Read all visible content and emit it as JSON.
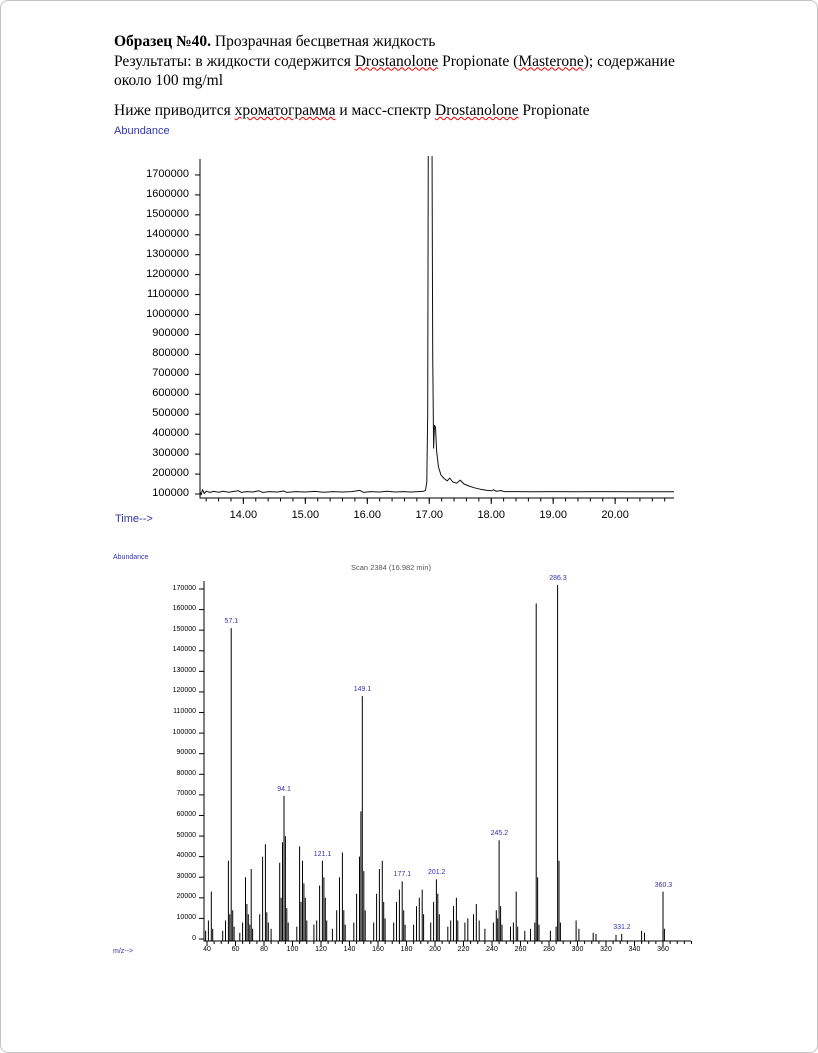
{
  "report": {
    "sample_title": "Образец №40.",
    "sample_desc": " Прозрачная бесцветная жидкость",
    "results_1": "Результаты: в жидкости содержится ",
    "drug_name_1": "Drostanolone",
    "results_2": " Propionate (",
    "trade_name": "Masterone",
    "results_3": "); содержание",
    "results_4": "около 100 mg/ml",
    "intro_1": "Ниже приводится ",
    "intro_word_chromatogram": "хроматограмма",
    "intro_2": " и масс-спектр ",
    "drug_name_2": "Drostanolone",
    "intro_3": " Propionate"
  },
  "colors": {
    "axis_label_blue": "#3333ad",
    "trace_black": "#111111",
    "title_gray": "#555555",
    "spellcheck_red": "#ee0000"
  },
  "chart_data": [
    {
      "type": "line",
      "title": "",
      "ylabel": "Abundance",
      "xlabel": "Time-->",
      "grid": false,
      "x_range": [
        13.3,
        20.95
      ],
      "y_range": [
        80000,
        1780000
      ],
      "x_major_ticks": [
        14,
        15,
        16,
        17,
        18,
        19,
        20
      ],
      "x_tick_decimals": 2,
      "x_minor_step": 0.2,
      "y_ticks": [
        100000,
        200000,
        300000,
        400000,
        500000,
        600000,
        700000,
        800000,
        900000,
        1000000,
        1100000,
        1200000,
        1300000,
        1400000,
        1500000,
        1600000,
        1700000
      ],
      "points": [
        [
          13.3,
          112000
        ],
        [
          13.32,
          96000
        ],
        [
          13.34,
          122000
        ],
        [
          13.37,
          102000
        ],
        [
          13.4,
          114000
        ],
        [
          13.46,
          108000
        ],
        [
          13.52,
          113000
        ],
        [
          13.6,
          109000
        ],
        [
          13.68,
          114000
        ],
        [
          13.76,
          109000
        ],
        [
          13.85,
          113000
        ],
        [
          13.92,
          116000
        ],
        [
          13.97,
          108000
        ],
        [
          14.05,
          112000
        ],
        [
          14.15,
          110000
        ],
        [
          14.25,
          116000
        ],
        [
          14.31,
          108000
        ],
        [
          14.42,
          112000
        ],
        [
          14.55,
          110000
        ],
        [
          14.65,
          115000
        ],
        [
          14.7,
          108000
        ],
        [
          14.85,
          112000
        ],
        [
          15.0,
          110000
        ],
        [
          15.15,
          113000
        ],
        [
          15.3,
          109000
        ],
        [
          15.45,
          112000
        ],
        [
          15.6,
          110000
        ],
        [
          15.75,
          112000
        ],
        [
          15.88,
          118000
        ],
        [
          15.94,
          108000
        ],
        [
          16.05,
          112000
        ],
        [
          16.2,
          110000
        ],
        [
          16.32,
          114000
        ],
        [
          16.45,
          110000
        ],
        [
          16.58,
          112000
        ],
        [
          16.7,
          110000
        ],
        [
          16.82,
          112000
        ],
        [
          16.9,
          113000
        ],
        [
          16.94,
          118000
        ],
        [
          16.96,
          160000
        ],
        [
          16.975,
          500000
        ],
        [
          16.985,
          1900000
        ],
        [
          17.045,
          1900000
        ],
        [
          17.055,
          800000
        ],
        [
          17.07,
          330000
        ],
        [
          17.085,
          445000
        ],
        [
          17.1,
          435000
        ],
        [
          17.12,
          310000
        ],
        [
          17.15,
          235000
        ],
        [
          17.19,
          195000
        ],
        [
          17.24,
          178000
        ],
        [
          17.29,
          166000
        ],
        [
          17.33,
          180000
        ],
        [
          17.38,
          160000
        ],
        [
          17.44,
          154000
        ],
        [
          17.5,
          170000
        ],
        [
          17.56,
          150000
        ],
        [
          17.64,
          140000
        ],
        [
          17.73,
          131000
        ],
        [
          17.82,
          124000
        ],
        [
          17.92,
          119000
        ],
        [
          18.0,
          116000
        ],
        [
          18.04,
          121000
        ],
        [
          18.08,
          114000
        ],
        [
          18.15,
          117000
        ],
        [
          18.22,
          112000
        ],
        [
          18.4,
          112000
        ],
        [
          18.7,
          111000
        ],
        [
          19.0,
          112000
        ],
        [
          19.4,
          111000
        ],
        [
          19.8,
          112000
        ],
        [
          20.3,
          111000
        ],
        [
          20.95,
          111000
        ]
      ]
    },
    {
      "type": "bar",
      "title": "Scan 2384 (16.982 min)",
      "ylabel": "Abundance",
      "xlabel": "m/z-->",
      "grid": false,
      "x_range": [
        38,
        380
      ],
      "y_range": [
        0,
        174000
      ],
      "x_major_ticks": [
        40,
        60,
        80,
        100,
        120,
        140,
        160,
        180,
        200,
        220,
        240,
        260,
        280,
        300,
        320,
        340,
        360
      ],
      "x_tick_decimals": 0,
      "x_minor_step": 5,
      "y_ticks": [
        0,
        10000,
        20000,
        30000,
        40000,
        50000,
        60000,
        70000,
        80000,
        90000,
        100000,
        110000,
        120000,
        130000,
        140000,
        150000,
        160000,
        170000
      ],
      "peaks": [
        [
          39,
          4000
        ],
        [
          41,
          9000
        ],
        [
          43,
          23000
        ],
        [
          44,
          5000
        ],
        [
          51,
          4000
        ],
        [
          53,
          9000
        ],
        [
          55,
          38000
        ],
        [
          56,
          12000
        ],
        [
          57,
          151000
        ],
        [
          58,
          14000
        ],
        [
          59,
          6000
        ],
        [
          63,
          3000
        ],
        [
          65,
          8000
        ],
        [
          67,
          30000
        ],
        [
          68,
          17000
        ],
        [
          69,
          12000
        ],
        [
          70,
          7000
        ],
        [
          71,
          34000
        ],
        [
          72,
          5000
        ],
        [
          77,
          12000
        ],
        [
          79,
          40000
        ],
        [
          81,
          46000
        ],
        [
          82,
          13000
        ],
        [
          83,
          8000
        ],
        [
          85,
          5000
        ],
        [
          91,
          37000
        ],
        [
          92,
          20000
        ],
        [
          93,
          47000
        ],
        [
          94,
          69500
        ],
        [
          95,
          50000
        ],
        [
          96,
          15000
        ],
        [
          97,
          8000
        ],
        [
          103,
          6000
        ],
        [
          105,
          45000
        ],
        [
          106,
          18000
        ],
        [
          107,
          38000
        ],
        [
          108,
          27000
        ],
        [
          109,
          20000
        ],
        [
          110,
          9000
        ],
        [
          115,
          7000
        ],
        [
          117,
          9000
        ],
        [
          119,
          26000
        ],
        [
          121,
          38000
        ],
        [
          122,
          30000
        ],
        [
          123,
          20000
        ],
        [
          124,
          9000
        ],
        [
          128,
          5000
        ],
        [
          131,
          14000
        ],
        [
          133,
          30000
        ],
        [
          135,
          42000
        ],
        [
          136,
          14000
        ],
        [
          137,
          7000
        ],
        [
          143,
          8000
        ],
        [
          145,
          22000
        ],
        [
          147,
          40000
        ],
        [
          148,
          62000
        ],
        [
          149,
          118000
        ],
        [
          150,
          33000
        ],
        [
          151,
          14000
        ],
        [
          157,
          8000
        ],
        [
          159,
          22000
        ],
        [
          161,
          34000
        ],
        [
          163,
          38000
        ],
        [
          164,
          18000
        ],
        [
          165,
          10000
        ],
        [
          171,
          8000
        ],
        [
          173,
          18000
        ],
        [
          175,
          24000
        ],
        [
          177,
          28000
        ],
        [
          178,
          14000
        ],
        [
          179,
          7000
        ],
        [
          185,
          7000
        ],
        [
          187,
          16000
        ],
        [
          189,
          20000
        ],
        [
          191,
          24000
        ],
        [
          192,
          12000
        ],
        [
          197,
          8000
        ],
        [
          199,
          18000
        ],
        [
          201,
          29000
        ],
        [
          202,
          22000
        ],
        [
          203,
          12000
        ],
        [
          209,
          6000
        ],
        [
          211,
          9000
        ],
        [
          213,
          16000
        ],
        [
          215,
          20000
        ],
        [
          216,
          9000
        ],
        [
          221,
          8000
        ],
        [
          223,
          10000
        ],
        [
          227,
          12000
        ],
        [
          229,
          17000
        ],
        [
          231,
          9000
        ],
        [
          235,
          5000
        ],
        [
          241,
          8000
        ],
        [
          243,
          14000
        ],
        [
          244,
          10000
        ],
        [
          245,
          48000
        ],
        [
          246,
          16000
        ],
        [
          247,
          7000
        ],
        [
          253,
          6000
        ],
        [
          255,
          8000
        ],
        [
          257,
          23000
        ],
        [
          258,
          6000
        ],
        [
          263,
          4000
        ],
        [
          267,
          5000
        ],
        [
          270,
          8000
        ],
        [
          271,
          163000
        ],
        [
          272,
          30000
        ],
        [
          273,
          7000
        ],
        [
          281,
          4000
        ],
        [
          285,
          6000
        ],
        [
          286,
          172000
        ],
        [
          287,
          38000
        ],
        [
          288,
          8000
        ],
        [
          299,
          9000
        ],
        [
          301,
          5000
        ],
        [
          311,
          3000
        ],
        [
          313,
          2500
        ],
        [
          327,
          2000
        ],
        [
          331,
          2500
        ],
        [
          345,
          4000
        ],
        [
          347,
          3000
        ],
        [
          360,
          23000
        ],
        [
          361,
          5000
        ]
      ],
      "peak_labels": [
        {
          "text": "57.1",
          "mz": 57.1,
          "value": 151000
        },
        {
          "text": "94.1",
          "mz": 94.1,
          "value": 69500
        },
        {
          "text": "121.1",
          "mz": 121.1,
          "value": 38000
        },
        {
          "text": "149.1",
          "mz": 149.1,
          "value": 118000
        },
        {
          "text": "177.1",
          "mz": 177.1,
          "value": 28000
        },
        {
          "text": "201.2",
          "mz": 201.2,
          "value": 29000
        },
        {
          "text": "245.2",
          "mz": 245.2,
          "value": 48000
        },
        {
          "text": "286.3",
          "mz": 286.3,
          "value": 172000
        },
        {
          "text": "331.2",
          "mz": 331.2,
          "value": 2500
        },
        {
          "text": "360.3",
          "mz": 360.3,
          "value": 23000
        }
      ]
    }
  ]
}
